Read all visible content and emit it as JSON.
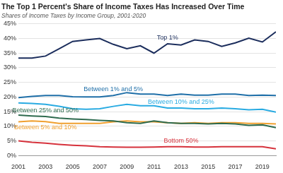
{
  "chart_data": {
    "type": "line",
    "title": "The Top 1 Percent's Share of Income Taxes Has Increased Over Time",
    "subtitle": "Shares of Income Taxes by Income Group, 2001-2020",
    "x": [
      2001,
      2002,
      2003,
      2004,
      2005,
      2006,
      2007,
      2008,
      2009,
      2010,
      2011,
      2012,
      2013,
      2014,
      2015,
      2016,
      2017,
      2018,
      2019,
      2020
    ],
    "xlim": [
      2001,
      2020
    ],
    "xticks": [
      2001,
      2003,
      2005,
      2007,
      2009,
      2011,
      2013,
      2015,
      2017,
      2019
    ],
    "ylim": [
      0,
      45
    ],
    "yticks": [
      {
        "value": 0,
        "label": "0%"
      },
      {
        "value": 5,
        "label": "5%"
      },
      {
        "value": 10,
        "label": "10%"
      },
      {
        "value": 15,
        "label": "15%"
      },
      {
        "value": 20,
        "label": "20%"
      },
      {
        "value": 25,
        "label": "25%"
      },
      {
        "value": 30,
        "label": "30%"
      },
      {
        "value": 35,
        "label": "35%"
      },
      {
        "value": 40,
        "label": "40%"
      },
      {
        "value": 45,
        "label": "45%"
      }
    ],
    "grid": true,
    "series": [
      {
        "name": "Top 1%",
        "color": "#1b2d5c",
        "values": [
          33.3,
          33.3,
          34.0,
          36.5,
          39.0,
          39.5,
          40.0,
          38.0,
          36.5,
          37.5,
          35.0,
          38.2,
          37.8,
          39.5,
          39.0,
          37.3,
          38.5,
          40.1,
          38.8,
          42.3
        ]
      },
      {
        "name": "Between 1% and 5%",
        "color": "#1f6fa8",
        "values": [
          19.8,
          20.2,
          20.5,
          20.5,
          20.1,
          20.0,
          20.0,
          20.5,
          21.5,
          21.0,
          21.0,
          20.5,
          21.0,
          20.6,
          20.6,
          21.0,
          21.0,
          20.5,
          20.6,
          20.5
        ]
      },
      {
        "name": "Between 10% and 25%",
        "color": "#29abe2",
        "values": [
          18.0,
          17.8,
          17.5,
          16.8,
          16.0,
          15.8,
          16.0,
          16.8,
          17.5,
          17.0,
          17.0,
          16.2,
          16.2,
          16.0,
          16.0,
          16.2,
          16.0,
          15.6,
          15.8,
          14.8
        ]
      },
      {
        "name": "Between 25% and 50%",
        "color": "#2e6b4f",
        "values": [
          13.8,
          13.5,
          13.3,
          12.8,
          12.5,
          12.3,
          12.0,
          11.8,
          11.2,
          11.0,
          11.8,
          11.2,
          11.0,
          11.0,
          10.8,
          11.0,
          10.8,
          10.3,
          10.5,
          9.5
        ]
      },
      {
        "name": "Between 5% and 10%",
        "color": "#f0a030",
        "values": [
          11.5,
          11.8,
          11.6,
          11.0,
          11.0,
          11.0,
          11.0,
          11.5,
          11.8,
          11.5,
          11.5,
          11.2,
          11.0,
          11.2,
          11.0,
          11.2,
          11.2,
          11.0,
          11.0,
          10.8
        ]
      },
      {
        "name": "Bottom 50%",
        "color": "#d6323c",
        "values": [
          5.0,
          4.5,
          4.2,
          3.8,
          3.5,
          3.3,
          3.0,
          2.9,
          2.8,
          2.8,
          2.9,
          3.0,
          3.0,
          2.9,
          2.9,
          3.0,
          3.0,
          3.0,
          3.0,
          2.3
        ]
      }
    ]
  }
}
